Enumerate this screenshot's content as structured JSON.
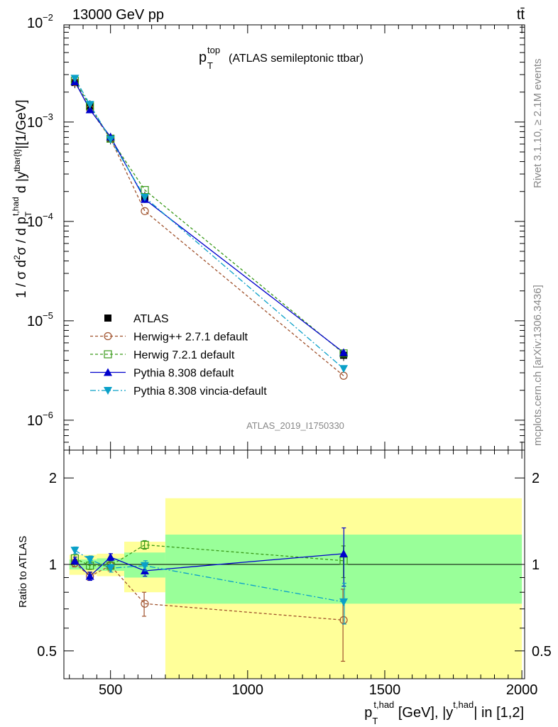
{
  "header": {
    "energy_label": "13000 GeV pp",
    "process_label": "tt̄"
  },
  "side": {
    "rivet_label": "Rivet 3.1.10, ≥ 2.1M events",
    "mcplots_label": "mcplots.cern.ch [arXiv:1306.3436]"
  },
  "chart_data": [
    {
      "type": "line",
      "panel": "main",
      "title_main": "p",
      "title_sup": "top",
      "title_sub": "T",
      "title_rest": "(ATLAS semileptonic ttbar)",
      "analysis_label": "ATLAS_2019_I1750330",
      "ylabel": "1 / σ d²σ / d p_T^{t,had} d |y^{tbar{t}}| [1/GeV]",
      "yscale": "log",
      "ylim": [
        5e-07,
        0.0095
      ],
      "xlim": [
        330,
        2010
      ],
      "y_tick_labels": [
        {
          "value": 1e-06,
          "mantissa": "10",
          "exp": "−6"
        },
        {
          "value": 1e-05,
          "mantissa": "10",
          "exp": "−5"
        },
        {
          "value": 0.0001,
          "mantissa": "10",
          "exp": "−4"
        },
        {
          "value": 0.001,
          "mantissa": "10",
          "exp": "−3"
        },
        {
          "value": 0.01,
          "mantissa": "10",
          "exp": "−2"
        }
      ],
      "x": [
        370,
        425,
        500,
        625,
        1350
      ],
      "series": [
        {
          "name": "ATLAS",
          "color": "#000000",
          "marker": "square-filled",
          "dash": "none",
          "values": [
            0.0025,
            0.00145,
            0.00068,
            0.000175,
            4.5e-06
          ]
        },
        {
          "name": "Herwig++ 2.7.1 default",
          "color": "#a0522d",
          "marker": "circle-open",
          "dash": "4,3",
          "values": [
            0.00253,
            0.00135,
            0.00068,
            0.000127,
            2.8e-06
          ]
        },
        {
          "name": "Herwig 7.2.1 default",
          "color": "#3a9a1a",
          "marker": "square-open",
          "dash": "4,3",
          "values": [
            0.0026,
            0.00145,
            0.00068,
            0.000207,
            4.7e-06
          ]
        },
        {
          "name": "Pythia 8.308 default",
          "color": "#0000cc",
          "marker": "triangle-up",
          "dash": "none",
          "values": [
            0.00255,
            0.00133,
            0.00071,
            0.000167,
            4.8e-06
          ]
        },
        {
          "name": "Pythia 8.308 vincia-default",
          "color": "#0aa0c8",
          "marker": "triangle-down",
          "dash": "8,3,2,3",
          "values": [
            0.00275,
            0.0015,
            0.00067,
            0.000175,
            3.3e-06
          ]
        }
      ]
    },
    {
      "type": "line",
      "panel": "ratio",
      "ylabel": "Ratio to ATLAS",
      "yscale": "log",
      "ylim": [
        0.4,
        2.5
      ],
      "xlim": [
        330,
        2010
      ],
      "xlabel_main": "p",
      "xlabel_sup": "t,had",
      "xlabel_sub": "T",
      "xlabel_rest": " [GeV], |y",
      "xlabel_sup2": "t,had",
      "xlabel_end": "| in [1,2]",
      "x_ticks": [
        500,
        1000,
        1500,
        2000
      ],
      "x_tick_labels": [
        "500",
        "1000",
        "1500",
        "2000"
      ],
      "y_ticks": [
        0.5,
        1,
        2
      ],
      "y_tick_labels": [
        "0.5",
        "1",
        "2"
      ],
      "bins": [
        {
          "x_low": 350,
          "x_high": 400,
          "stat": 0.04,
          "total": 0.08
        },
        {
          "x_low": 400,
          "x_high": 450,
          "stat": 0.04,
          "total": 0.08
        },
        {
          "x_low": 450,
          "x_high": 550,
          "stat": 0.05,
          "total": 0.09
        },
        {
          "x_low": 550,
          "x_high": 700,
          "stat": 0.1,
          "total": 0.2
        },
        {
          "x_low": 700,
          "x_high": 2000,
          "stat": 0.27,
          "total": 0.7
        }
      ],
      "x": [
        370,
        425,
        500,
        625,
        1350
      ],
      "series": [
        {
          "name": "Herwig++ 2.7.1 default",
          "values": [
            1.01,
            0.91,
            0.99,
            0.73,
            0.64
          ],
          "errors": [
            0.03,
            0.03,
            0.04,
            0.07,
            0.18
          ]
        },
        {
          "name": "Herwig 7.2.1 default",
          "values": [
            1.05,
            0.99,
            0.99,
            1.17,
            1.03
          ],
          "errors": [
            0.03,
            0.03,
            0.03,
            0.04,
            0.13
          ]
        },
        {
          "name": "Pythia 8.308 default",
          "values": [
            1.03,
            0.91,
            1.06,
            0.95,
            1.09
          ],
          "errors": [
            0.03,
            0.03,
            0.03,
            0.04,
            0.25
          ]
        },
        {
          "name": "Pythia 8.308 vincia-default",
          "values": [
            1.12,
            1.04,
            0.97,
            0.99,
            0.74
          ],
          "errors": [
            0.03,
            0.03,
            0.03,
            0.04,
            0.12
          ]
        }
      ]
    }
  ]
}
